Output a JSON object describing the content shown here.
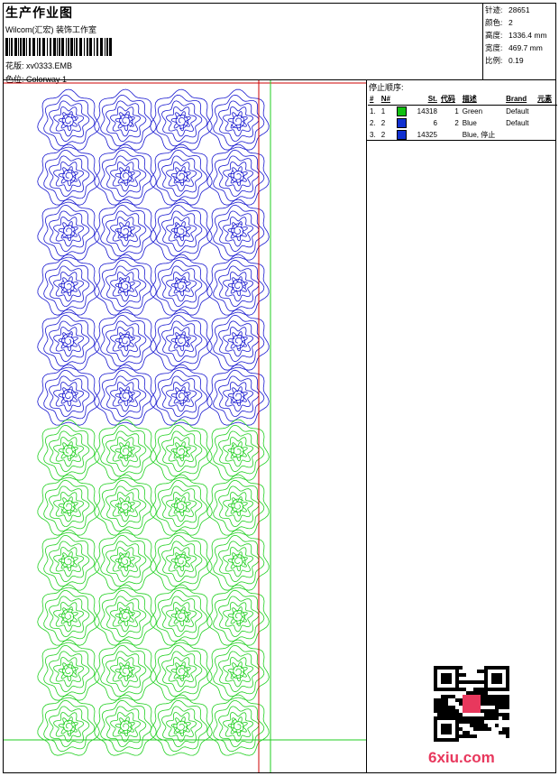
{
  "header": {
    "title": "生产作业图",
    "company": "Wilcom(汇宏) 装饰工作室",
    "file_label": "花版:",
    "file_value": "xv0333.EMB",
    "colorway_label": "色位:",
    "colorway_value": "Colorway 1"
  },
  "stats": [
    {
      "label": "针迹:",
      "value": "28651"
    },
    {
      "label": "颜色:",
      "value": "2"
    },
    {
      "label": "高度:",
      "value": "1336.4 mm"
    },
    {
      "label": "宽度:",
      "value": "469.7 mm"
    },
    {
      "label": "比例:",
      "value": "0.19"
    }
  ],
  "stop_sequence": {
    "title": "停止顺序:",
    "columns": [
      "#",
      "N#",
      "St.",
      "代码",
      "描述",
      "Brand",
      "元素"
    ],
    "rows": [
      {
        "idx": "1.",
        "n": "1",
        "color": "#10c010",
        "st": "14318",
        "code": "1",
        "desc": "Green",
        "brand": "Default",
        "elem": ""
      },
      {
        "idx": "2.",
        "n": "2",
        "color": "#1030d0",
        "st": "6",
        "code": "2",
        "desc": "Blue",
        "brand": "Default",
        "elem": ""
      },
      {
        "idx": "3.",
        "n": "2",
        "color": "#1030d0",
        "st": "14325",
        "code": "",
        "desc": "Blue, 停止",
        "brand": "",
        "elem": ""
      }
    ]
  },
  "design": {
    "blue": "#1a1ad0",
    "green": "#22d022",
    "guide_red": "#cc0000",
    "guide_green": "#22cc22",
    "columns": 4,
    "blue_rows": 6,
    "green_rows": 6
  },
  "brand_text": "6xiu.com"
}
